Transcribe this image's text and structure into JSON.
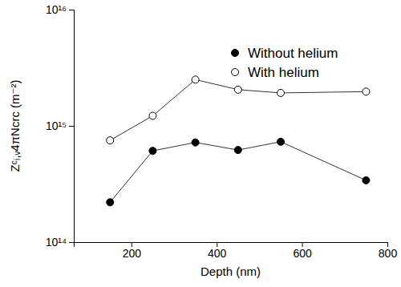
{
  "chart_data": {
    "type": "line",
    "x_label": "Depth (nm)",
    "y_label": "Zᶜᵢ,ᵥ4πNcrc (m⁻²)",
    "x": [
      150,
      250,
      350,
      450,
      550,
      750
    ],
    "series": [
      {
        "name": "Without helium",
        "color": "#000000",
        "marker": "circle",
        "line_style": "solid",
        "values": [
          220000000000000.0,
          610000000000000.0,
          720000000000000.0,
          620000000000000.0,
          730000000000000.0,
          340000000000000.0
        ]
      },
      {
        "name": "With helium",
        "color": "#ffffff",
        "marker": "circle",
        "line_style": "solid",
        "values": [
          750000000000000.0,
          1220000000000000.0,
          2500000000000000.0,
          2050000000000000.0,
          1920000000000000.0,
          1970000000000000.0
        ]
      }
    ],
    "xlim": [
      65,
      800
    ],
    "xticks": [
      200,
      400,
      600,
      800
    ],
    "ylim": [
      100000000000000.0,
      1e+16
    ],
    "yticks": [
      {
        "value": 100000000000000.0,
        "label": "10¹⁴"
      },
      {
        "value": 1000000000000000.0,
        "label": "10¹⁵"
      },
      {
        "value": 1e+16,
        "label": "10¹⁶"
      }
    ],
    "log": "y",
    "legend": "upper right",
    "grid": false
  }
}
